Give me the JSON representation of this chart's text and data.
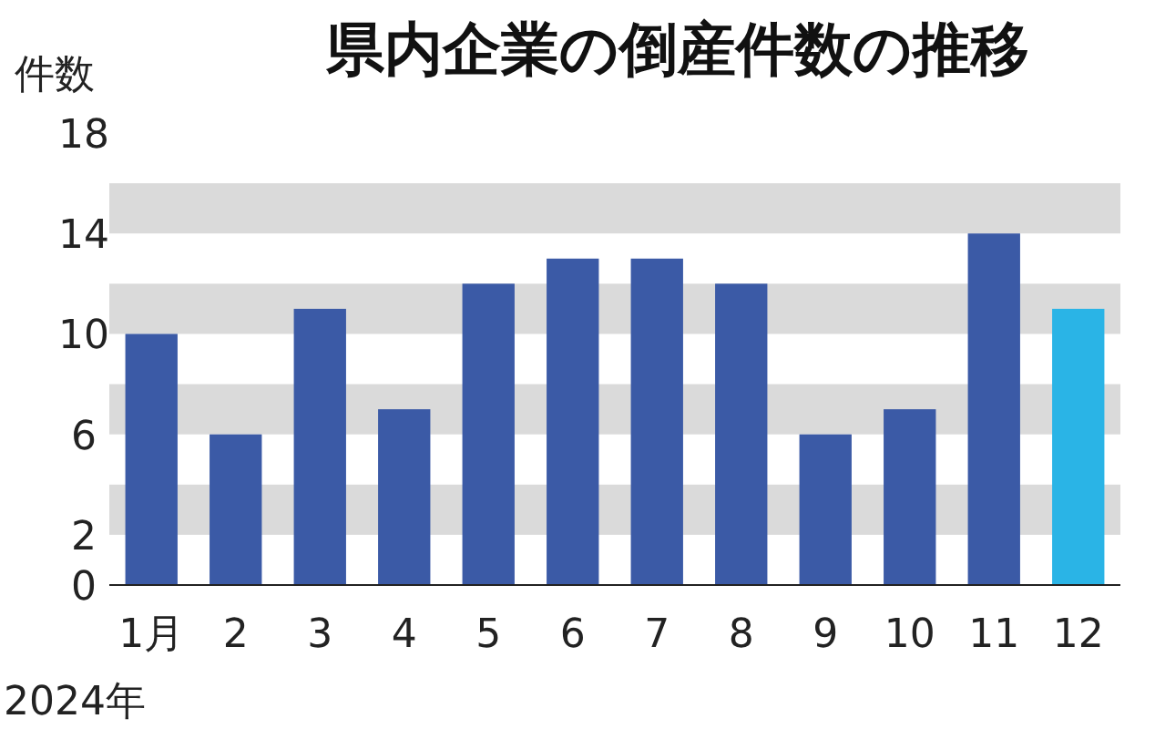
{
  "chart_data": {
    "type": "bar",
    "title": "県内企業の倒産件数の推移",
    "ylabel": "件数",
    "categories": [
      "1月",
      "2",
      "3",
      "4",
      "5",
      "6",
      "7",
      "8",
      "9",
      "10",
      "11",
      "12"
    ],
    "values": [
      10,
      6,
      11,
      7,
      12,
      13,
      13,
      12,
      6,
      7,
      14,
      11
    ],
    "colors": [
      "#3b5aa6",
      "#3b5aa6",
      "#3b5aa6",
      "#3b5aa6",
      "#3b5aa6",
      "#3b5aa6",
      "#3b5aa6",
      "#3b5aa6",
      "#3b5aa6",
      "#3b5aa6",
      "#3b5aa6",
      "#2ab4e6"
    ],
    "ylim": [
      0,
      18
    ],
    "yticks": [
      0,
      2,
      6,
      10,
      14,
      18
    ],
    "bands": [
      {
        "axis": "y",
        "from": 2,
        "to": 4,
        "color": "#dadada"
      },
      {
        "axis": "y",
        "from": 6,
        "to": 8,
        "color": "#dadada"
      },
      {
        "axis": "y",
        "from": 10,
        "to": 12,
        "color": "#dadada"
      },
      {
        "axis": "y",
        "from": 14,
        "to": 16,
        "color": "#dadada"
      }
    ],
    "annotations": [
      "2024年"
    ]
  }
}
